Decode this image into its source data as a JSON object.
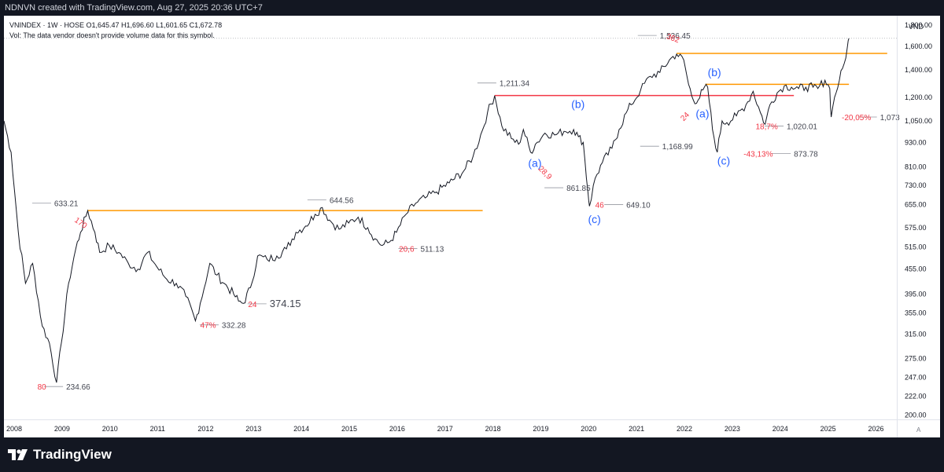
{
  "header": {
    "created_by": "NDNVN created with TradingView.com, Aug 27, 2025 20:36 UTC+7"
  },
  "legend": {
    "line1": "VNINDEX · 1W · HOSE  O1,645.47  H1,696.60  L1,601.65  C1,672.78",
    "line2": "Vol: The data vendor doesn't provide volume data for this symbol."
  },
  "footer": {
    "brand": "TradingView"
  },
  "axis": {
    "currency": "VND",
    "auto_label": "A"
  },
  "chart_data": {
    "type": "line",
    "y_scale": "log",
    "ylim": [
      195,
      1900
    ],
    "y_ticks": [
      200,
      222,
      247,
      275,
      315,
      355,
      395,
      455,
      515,
      575,
      655,
      730,
      810,
      930,
      1050,
      1200,
      1400,
      1600,
      1800
    ],
    "y_tick_labels": [
      "200.00",
      "222.00",
      "247.00",
      "275.00",
      "315.00",
      "355.00",
      "395.00",
      "455.00",
      "515.00",
      "575.00",
      "655.00",
      "730.00",
      "810.00",
      "930.00",
      "1,050.00",
      "1,200.00",
      "1,400.00",
      "1,600.00",
      "1,800.00"
    ],
    "xlim": [
      2008.0,
      2026.65
    ],
    "x_ticks": [
      2008,
      2009,
      2010,
      2011,
      2012,
      2013,
      2014,
      2015,
      2016,
      2017,
      2018,
      2019,
      2020,
      2021,
      2022,
      2023,
      2024,
      2025,
      2026
    ],
    "x_tick_labels": [
      "2008",
      "2009",
      "2010",
      "2011",
      "2012",
      "2013",
      "2014",
      "2015",
      "2016",
      "2017",
      "2018",
      "2019",
      "2020",
      "2021",
      "2022",
      "2023",
      "2024",
      "2025",
      "2026"
    ],
    "series": [
      {
        "points": [
          [
            2008.0,
            1050
          ],
          [
            2008.15,
            880
          ],
          [
            2008.3,
            560
          ],
          [
            2008.45,
            420
          ],
          [
            2008.6,
            470
          ],
          [
            2008.8,
            330
          ],
          [
            2008.95,
            300
          ],
          [
            2009.1,
            240
          ],
          [
            2009.2,
            300
          ],
          [
            2009.35,
            420
          ],
          [
            2009.5,
            510
          ],
          [
            2009.6,
            560
          ],
          [
            2009.75,
            633
          ],
          [
            2009.9,
            560
          ],
          [
            2010.0,
            500
          ],
          [
            2010.2,
            520
          ],
          [
            2010.4,
            500
          ],
          [
            2010.6,
            470
          ],
          [
            2010.8,
            455
          ],
          [
            2011.0,
            500
          ],
          [
            2011.2,
            460
          ],
          [
            2011.4,
            430
          ],
          [
            2011.6,
            420
          ],
          [
            2011.8,
            390
          ],
          [
            2012.0,
            340
          ],
          [
            2012.1,
            375
          ],
          [
            2012.3,
            470
          ],
          [
            2012.45,
            440
          ],
          [
            2012.6,
            420
          ],
          [
            2012.8,
            395
          ],
          [
            2012.9,
            380
          ],
          [
            2013.0,
            375
          ],
          [
            2013.15,
            410
          ],
          [
            2013.3,
            490
          ],
          [
            2013.5,
            480
          ],
          [
            2013.7,
            490
          ],
          [
            2013.9,
            510
          ],
          [
            2014.1,
            560
          ],
          [
            2014.3,
            580
          ],
          [
            2014.5,
            620
          ],
          [
            2014.65,
            644
          ],
          [
            2014.8,
            600
          ],
          [
            2015.0,
            570
          ],
          [
            2015.2,
            590
          ],
          [
            2015.4,
            610
          ],
          [
            2015.6,
            575
          ],
          [
            2015.75,
            540
          ],
          [
            2015.9,
            520
          ],
          [
            2016.05,
            530
          ],
          [
            2016.2,
            560
          ],
          [
            2016.4,
            620
          ],
          [
            2016.6,
            660
          ],
          [
            2016.8,
            680
          ],
          [
            2017.0,
            700
          ],
          [
            2017.3,
            740
          ],
          [
            2017.6,
            790
          ],
          [
            2017.8,
            860
          ],
          [
            2018.0,
            1000
          ],
          [
            2018.1,
            1100
          ],
          [
            2018.25,
            1211
          ],
          [
            2018.4,
            1020
          ],
          [
            2018.6,
            950
          ],
          [
            2018.75,
            920
          ],
          [
            2018.85,
            1000
          ],
          [
            2019.0,
            880
          ],
          [
            2019.1,
            920
          ],
          [
            2019.3,
            980
          ],
          [
            2019.5,
            970
          ],
          [
            2019.7,
            990
          ],
          [
            2019.9,
            1000
          ],
          [
            2020.0,
            960
          ],
          [
            2020.1,
            930
          ],
          [
            2020.2,
            700
          ],
          [
            2020.23,
            649
          ],
          [
            2020.35,
            760
          ],
          [
            2020.5,
            830
          ],
          [
            2020.7,
            900
          ],
          [
            2020.85,
            1000
          ],
          [
            2021.0,
            1100
          ],
          [
            2021.1,
            1150
          ],
          [
            2021.3,
            1250
          ],
          [
            2021.5,
            1350
          ],
          [
            2021.7,
            1380
          ],
          [
            2021.9,
            1480
          ],
          [
            2022.05,
            1530
          ],
          [
            2022.2,
            1480
          ],
          [
            2022.3,
            1290
          ],
          [
            2022.4,
            1180
          ],
          [
            2022.5,
            1180
          ],
          [
            2022.6,
            1250
          ],
          [
            2022.7,
            1270
          ],
          [
            2022.8,
            1000
          ],
          [
            2022.9,
            880
          ],
          [
            2023.0,
            1050
          ],
          [
            2023.1,
            1040
          ],
          [
            2023.3,
            1080
          ],
          [
            2023.5,
            1150
          ],
          [
            2023.65,
            1240
          ],
          [
            2023.8,
            1100
          ],
          [
            2023.9,
            1030
          ],
          [
            2024.0,
            1150
          ],
          [
            2024.15,
            1230
          ],
          [
            2024.3,
            1280
          ],
          [
            2024.45,
            1270
          ],
          [
            2024.6,
            1260
          ],
          [
            2024.75,
            1270
          ],
          [
            2024.9,
            1270
          ],
          [
            2025.0,
            1260
          ],
          [
            2025.15,
            1320
          ],
          [
            2025.25,
            1260
          ],
          [
            2025.28,
            1073
          ],
          [
            2025.35,
            1200
          ],
          [
            2025.45,
            1320
          ],
          [
            2025.55,
            1450
          ],
          [
            2025.62,
            1600
          ],
          [
            2025.65,
            1672
          ]
        ]
      }
    ],
    "horizontal_lines": [
      {
        "y": 633.21,
        "x": [
          2009.75,
          2018.0
        ],
        "color": "#ff9800"
      },
      {
        "y": 1211.34,
        "x": [
          2018.25,
          2024.5
        ],
        "color": "#f23645"
      },
      {
        "y": 1536.45,
        "x": [
          2022.05,
          2026.45
        ],
        "color": "#ff9800"
      },
      {
        "y": 1290,
        "x": [
          2022.65,
          2025.65
        ],
        "color": "#ff9800"
      }
    ],
    "price_labels": [
      {
        "x": 2009.3,
        "y": 234.66,
        "text": "234.66"
      },
      {
        "x": 2009.05,
        "y": 660,
        "text": "633.21"
      },
      {
        "x": 2014.8,
        "y": 672,
        "text": "644.56"
      },
      {
        "x": 2016.7,
        "y": 511.13,
        "text": "511.13"
      },
      {
        "x": 2012.55,
        "y": 332.28,
        "text": "332.28"
      },
      {
        "x": 2013.55,
        "y": 374.15,
        "text": "374.15",
        "large": true
      },
      {
        "x": 2018.35,
        "y": 1300,
        "text": "1,211.34"
      },
      {
        "x": 2019.75,
        "y": 720,
        "text": "861.85"
      },
      {
        "x": 2021.0,
        "y": 655,
        "text": "649.10"
      },
      {
        "x": 2021.7,
        "y": 1700,
        "text": "1,536.45"
      },
      {
        "x": 2021.75,
        "y": 910,
        "text": "1,168.99"
      },
      {
        "x": 2024.5,
        "y": 873.78,
        "text": "873.78"
      },
      {
        "x": 2024.35,
        "y": 1020.01,
        "text": "1,020.01"
      },
      {
        "x": 2026.3,
        "y": 1073,
        "text": "1,073"
      }
    ],
    "red_labels": [
      {
        "x": 2008.7,
        "y": 234.66,
        "text": "80"
      },
      {
        "x": 2009.5,
        "y": 605,
        "text": "170",
        "rot": 35
      },
      {
        "x": 2012.1,
        "y": 332.28,
        "text": "47%"
      },
      {
        "x": 2013.1,
        "y": 374.15,
        "text": "24"
      },
      {
        "x": 2016.25,
        "y": 511.13,
        "text": "20,6"
      },
      {
        "x": 2019.2,
        "y": 810,
        "text": "28,9",
        "rot": 45
      },
      {
        "x": 2020.35,
        "y": 655,
        "text": "46"
      },
      {
        "x": 2021.85,
        "y": 1700,
        "text": "362",
        "rot": 20
      },
      {
        "x": 2022.15,
        "y": 1060,
        "text": "24",
        "rot": -45
      },
      {
        "x": 2023.45,
        "y": 873.78,
        "text": "-43,13%"
      },
      {
        "x": 2023.7,
        "y": 1020.01,
        "text": "18,7%"
      },
      {
        "x": 2025.5,
        "y": 1073,
        "text": "-20,05%"
      }
    ],
    "wave_labels": [
      {
        "x": 2018.95,
        "y": 810,
        "text": "(a)"
      },
      {
        "x": 2019.85,
        "y": 1130,
        "text": "(b)"
      },
      {
        "x": 2020.2,
        "y": 590,
        "text": "(c)"
      },
      {
        "x": 2022.45,
        "y": 1070,
        "text": "(a)"
      },
      {
        "x": 2022.7,
        "y": 1350,
        "text": "(b)"
      },
      {
        "x": 2022.9,
        "y": 820,
        "text": "(c)"
      }
    ]
  }
}
